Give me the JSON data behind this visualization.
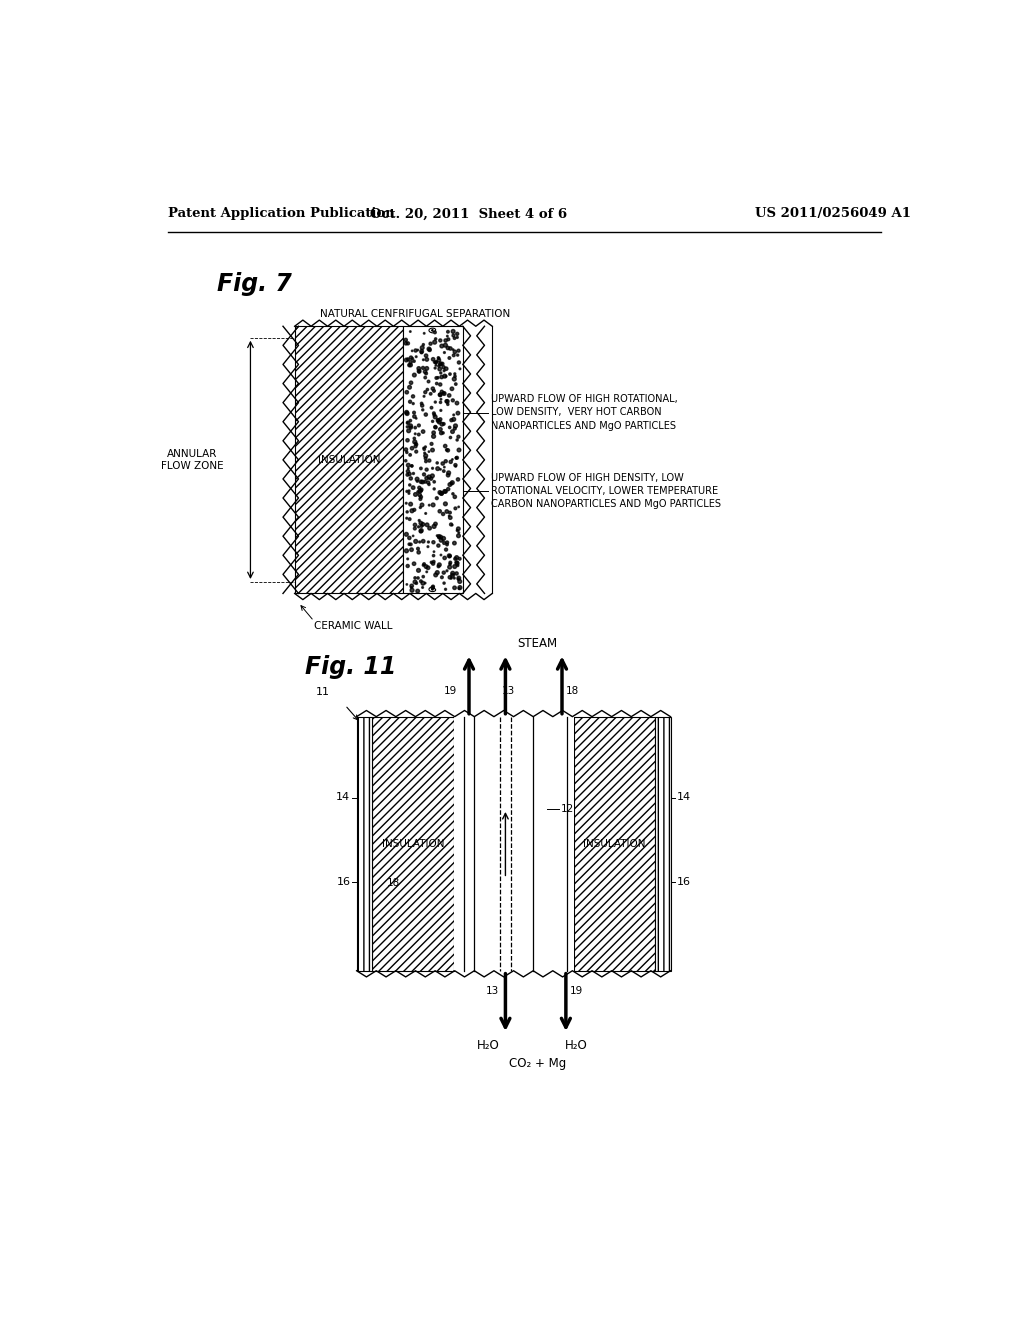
{
  "bg_color": "#ffffff",
  "header_left": "Patent Application Publication",
  "header_mid": "Oct. 20, 2011  Sheet 4 of 6",
  "header_right": "US 2011/0256049 A1",
  "fig7_label": "Fig. 7",
  "fig11_label": "Fig. 11",
  "fig7_title": "NATURAL CENFRIFUGAL SEPARATION",
  "fig7_annular": "ANNULAR\nFLOW ZONE",
  "fig7_insulation": "INSULATION",
  "fig7_ceramic": "CERAMIC WALL",
  "fig7_label4": "UPWARD FLOW OF HIGH ROTATIONAL,\nLOW DENSITY,  VERY HOT CARBON\nNANOPARTICLES AND MgO PARTICLES",
  "fig7_label5": "UPWARD FLOW OF HIGH DENSITY, LOW\nROTATIONAL VELOCITY, LOWER TEMPERATURE\nCARBON NANOPARTICLES AND MgO PARTICLES",
  "fig11_steam": "STEAM",
  "fig11_h2o_left": "H₂O",
  "fig11_h2o_right": "H₂O",
  "fig11_co2mg": "CO₂ + Mg",
  "fig11_ins1": "INSULATION",
  "fig11_ins2": "INSULATION"
}
